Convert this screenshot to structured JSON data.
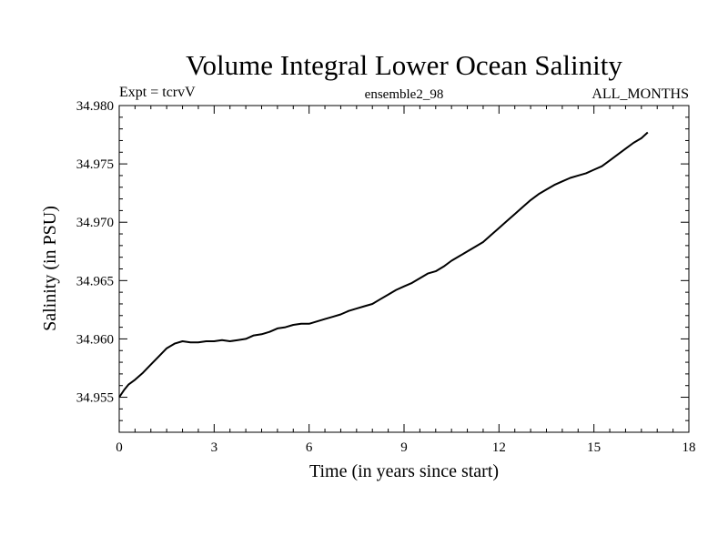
{
  "chart_data": {
    "type": "line",
    "title": "Volume Integral Lower Ocean Salinity",
    "subtitle_left": "Expt = tcrvV",
    "subtitle_center": "ensemble2_98",
    "subtitle_right": "ALL_MONTHS",
    "xlabel": "Time (in years since start)",
    "ylabel": "Salinity (in PSU)",
    "xlim": [
      0,
      18
    ],
    "ylim": [
      34.952,
      34.98
    ],
    "xticks": [
      0,
      3,
      6,
      9,
      12,
      15,
      18
    ],
    "xtick_labels": [
      "0",
      "3",
      "6",
      "9",
      "12",
      "15",
      "18"
    ],
    "yticks": [
      34.955,
      34.96,
      34.965,
      34.97,
      34.975,
      34.98
    ],
    "ytick_labels": [
      "34.955",
      "34.960",
      "34.965",
      "34.970",
      "34.975",
      "34.980"
    ],
    "line_color": "#000000",
    "grid": false,
    "series": [
      {
        "x": [
          0.0,
          0.15,
          0.3,
          0.5,
          0.75,
          1.0,
          1.25,
          1.5,
          1.75,
          2.0,
          2.25,
          2.5,
          2.75,
          3.0,
          3.25,
          3.5,
          3.75,
          4.0,
          4.25,
          4.5,
          4.75,
          5.0,
          5.25,
          5.5,
          5.75,
          6.0,
          6.25,
          6.5,
          6.75,
          7.0,
          7.25,
          7.5,
          7.75,
          8.0,
          8.25,
          8.5,
          8.75,
          9.0,
          9.25,
          9.5,
          9.75,
          10.0,
          10.25,
          10.5,
          10.75,
          11.0,
          11.25,
          11.5,
          11.75,
          12.0,
          12.25,
          12.5,
          12.75,
          13.0,
          13.25,
          13.5,
          13.75,
          14.0,
          14.25,
          14.5,
          14.75,
          15.0,
          15.25,
          15.5,
          15.75,
          16.0,
          16.25,
          16.5,
          16.7
        ],
        "y": [
          34.955,
          34.9556,
          34.9561,
          34.9565,
          34.9571,
          34.9578,
          34.9585,
          34.9592,
          34.9596,
          34.9598,
          34.9597,
          34.9597,
          34.9598,
          34.9598,
          34.9599,
          34.9598,
          34.9599,
          34.96,
          34.9603,
          34.9604,
          34.9606,
          34.9609,
          34.961,
          34.9612,
          34.9613,
          34.9613,
          34.9615,
          34.9617,
          34.9619,
          34.9621,
          34.9624,
          34.9626,
          34.9628,
          34.963,
          34.9634,
          34.9638,
          34.9642,
          34.9645,
          34.9648,
          34.9652,
          34.9656,
          34.9658,
          34.9662,
          34.9667,
          34.9671,
          34.9675,
          34.9679,
          34.9683,
          34.9689,
          34.9695,
          34.9701,
          34.9707,
          34.9713,
          34.9719,
          34.9724,
          34.9728,
          34.9732,
          34.9735,
          34.9738,
          34.974,
          34.9742,
          34.9745,
          34.9748,
          34.9753,
          34.9758,
          34.9763,
          34.9768,
          34.9772,
          34.9777
        ]
      }
    ]
  }
}
